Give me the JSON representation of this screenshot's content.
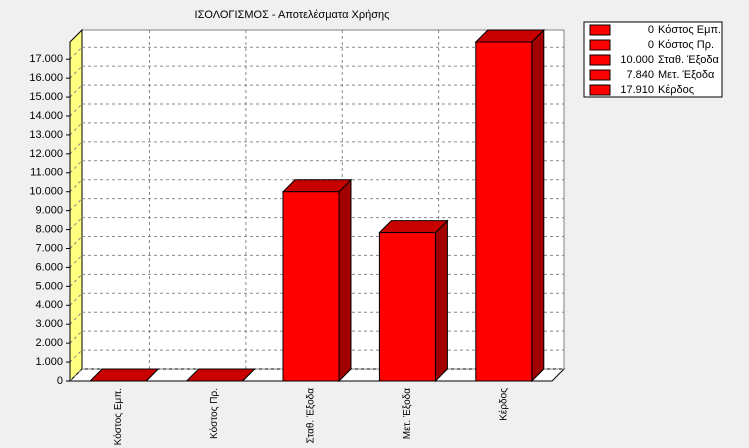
{
  "chart_data": {
    "type": "bar3d",
    "title": "ΙΣΟΛΟΓΙΣΜΟΣ - Αποτελέσματα Χρήσης",
    "categories": [
      "Κόστος Εμπ.",
      "Κόστος Πρ.",
      "Σταθ. Έξοδα",
      "Μετ. Έξοδα",
      "Κέρδος"
    ],
    "values": [
      0,
      0,
      10000,
      7840,
      17910
    ],
    "value_labels": [
      "0",
      "0",
      "10.000",
      "7.840",
      "17.910"
    ],
    "color": "#ff0000",
    "ylim": [
      0,
      17910
    ],
    "yticks": [
      0,
      {
        "value": 1000,
        "label": "1.000"
      },
      {
        "value": 2000,
        "label": "2.000"
      },
      {
        "value": 3000,
        "label": "3.000"
      },
      {
        "value": 4000,
        "label": "4.000"
      },
      {
        "value": 5000,
        "label": "5.000"
      },
      {
        "value": 6000,
        "label": "6.000"
      },
      {
        "value": 7000,
        "label": "7.000"
      },
      {
        "value": 8000,
        "label": "8.000"
      },
      {
        "value": 9000,
        "label": "9.000"
      },
      {
        "value": 10000,
        "label": "10.000"
      },
      {
        "value": 11000,
        "label": "11.000"
      },
      {
        "value": 12000,
        "label": "12.000"
      },
      {
        "value": 13000,
        "label": "13.000"
      },
      {
        "value": 14000,
        "label": "14.000"
      },
      {
        "value": 15000,
        "label": "15.000"
      },
      {
        "value": 16000,
        "label": "16.000"
      },
      {
        "value": 17000,
        "label": "17.000"
      }
    ],
    "grid": true,
    "legend": "top-right"
  }
}
